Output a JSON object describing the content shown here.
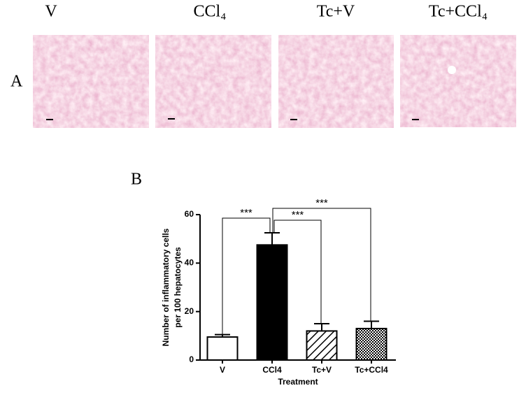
{
  "panel_a": {
    "label": "A",
    "columns": [
      "V",
      "CCl₄",
      "Tc+V",
      "Tc+CCl₄"
    ]
  },
  "chart_data": {
    "type": "bar",
    "panel_label": "B",
    "categories": [
      "V",
      "CCl4",
      "Tc+V",
      "Tc+CCl4"
    ],
    "values": [
      9.5,
      47.5,
      12,
      13
    ],
    "errors": [
      1,
      5,
      3,
      3
    ],
    "patterns": [
      "none",
      "solid",
      "diagonal",
      "crosshatch"
    ],
    "y_label": [
      "Number of inflammatory cells",
      "per 100 hepatocytes"
    ],
    "x_label": "Treatment",
    "ylim": [
      0,
      60
    ],
    "yticks": [
      0,
      20,
      40,
      60
    ],
    "annotations": [
      "***",
      "***",
      "***"
    ]
  }
}
